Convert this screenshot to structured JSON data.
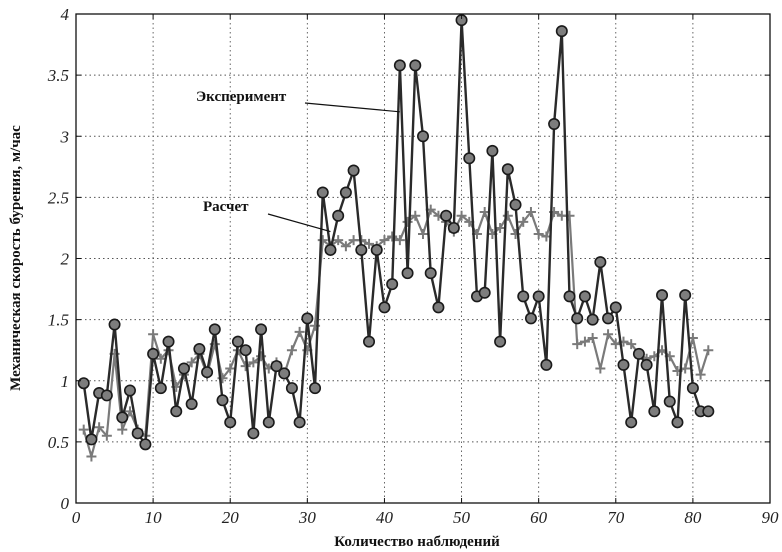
{
  "chart_data": {
    "type": "line",
    "xlabel": "Количество наблюдений",
    "ylabel": "Механическая скорость бурения, м/час",
    "xlim": [
      0,
      90
    ],
    "ylim": [
      0,
      4
    ],
    "xticks": [
      "0",
      "10",
      "20",
      "30",
      "40",
      "50",
      "60",
      "70",
      "80",
      "90"
    ],
    "yticks": [
      "0",
      "0.5",
      "1",
      "1.5",
      "2",
      "2.5",
      "3",
      "3.5",
      "4"
    ],
    "grid": true,
    "series": [
      {
        "name": "Эксперимент",
        "marker": "circle",
        "color": "#2a2a2a",
        "x": [
          1,
          2,
          3,
          4,
          5,
          6,
          7,
          8,
          9,
          10,
          11,
          12,
          13,
          14,
          15,
          16,
          17,
          18,
          19,
          20,
          21,
          22,
          23,
          24,
          25,
          26,
          27,
          28,
          29,
          30,
          31,
          32,
          33,
          34,
          35,
          36,
          37,
          38,
          39,
          40,
          41,
          42,
          43,
          44,
          45,
          46,
          47,
          48,
          49,
          50,
          51,
          52,
          53,
          54,
          55,
          56,
          57,
          58,
          59,
          60,
          61,
          62,
          63,
          64,
          65,
          66,
          67,
          68,
          69,
          70,
          71,
          72,
          73,
          74,
          75,
          76,
          77,
          78,
          79,
          80,
          81,
          82
        ],
        "values": [
          0.98,
          0.52,
          0.9,
          0.88,
          1.46,
          0.7,
          0.92,
          0.57,
          0.48,
          1.22,
          0.94,
          1.32,
          0.75,
          1.1,
          0.81,
          1.26,
          1.07,
          1.42,
          0.84,
          0.66,
          1.32,
          1.25,
          0.57,
          1.42,
          0.66,
          1.12,
          1.06,
          0.94,
          0.66,
          1.51,
          0.94,
          2.54,
          2.07,
          2.35,
          2.54,
          2.72,
          2.07,
          1.32,
          2.07,
          1.6,
          1.79,
          3.58,
          1.88,
          3.58,
          3.0,
          1.88,
          1.6,
          2.35,
          2.25,
          3.95,
          2.82,
          1.69,
          1.72,
          2.88,
          1.32,
          2.73,
          2.44,
          1.69,
          1.51,
          1.69,
          1.13,
          3.1,
          3.86,
          1.69,
          1.51,
          1.69,
          1.5,
          1.97,
          1.51,
          1.6,
          1.13,
          0.66,
          1.22,
          1.13,
          0.75,
          1.7,
          0.83,
          0.66,
          1.7,
          0.94,
          0.75,
          0.75
        ]
      },
      {
        "name": "Расчет",
        "marker": "plus",
        "color": "#7a7a7a",
        "x": [
          1,
          2,
          3,
          4,
          5,
          6,
          7,
          8,
          9,
          10,
          11,
          12,
          13,
          14,
          15,
          16,
          17,
          18,
          19,
          20,
          21,
          22,
          23,
          24,
          25,
          26,
          27,
          28,
          29,
          30,
          31,
          32,
          33,
          34,
          35,
          36,
          37,
          38,
          39,
          40,
          41,
          42,
          43,
          44,
          45,
          46,
          47,
          48,
          49,
          50,
          51,
          52,
          53,
          54,
          55,
          56,
          57,
          58,
          59,
          60,
          61,
          62,
          63,
          64,
          65,
          66,
          67,
          68,
          69,
          70,
          71,
          72,
          73,
          74,
          75,
          76,
          77,
          78,
          79,
          80,
          81,
          82
        ],
        "values": [
          0.6,
          0.38,
          0.62,
          0.55,
          1.22,
          0.6,
          0.75,
          0.6,
          0.55,
          1.38,
          1.18,
          1.25,
          0.95,
          1.05,
          1.15,
          1.22,
          1.05,
          1.3,
          1.02,
          1.1,
          1.25,
          1.12,
          1.15,
          1.2,
          1.1,
          1.15,
          1.05,
          1.25,
          1.4,
          1.25,
          1.45,
          2.15,
          2.1,
          2.15,
          2.1,
          2.15,
          2.15,
          2.12,
          2.1,
          2.15,
          2.18,
          2.15,
          2.3,
          2.35,
          2.2,
          2.4,
          2.35,
          2.3,
          2.22,
          2.35,
          2.3,
          2.2,
          2.38,
          2.2,
          2.25,
          2.35,
          2.2,
          2.3,
          2.38,
          2.2,
          2.18,
          2.38,
          2.35,
          2.35,
          1.3,
          1.32,
          1.35,
          1.1,
          1.38,
          1.3,
          1.32,
          1.3,
          1.22,
          1.18,
          1.2,
          1.25,
          1.2,
          1.08,
          1.1,
          1.35,
          1.05,
          1.25
        ]
      }
    ],
    "annotations": [
      {
        "text": "Эксперимент",
        "points_to": [
          42,
          3.2
        ]
      },
      {
        "text": "Расчет",
        "points_to": [
          33,
          2.22
        ]
      }
    ]
  }
}
